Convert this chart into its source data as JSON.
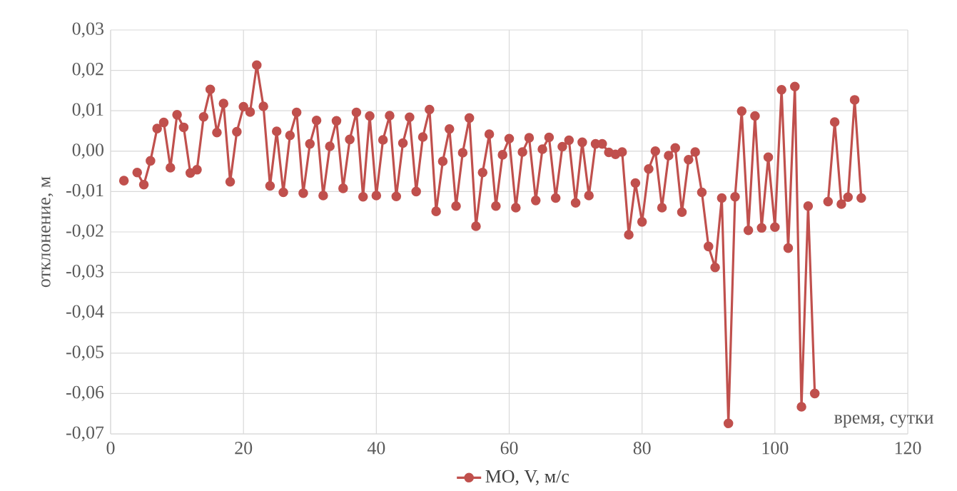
{
  "chart_data": {
    "type": "line",
    "xlabel": "время, сутки",
    "ylabel": "отклонение, м",
    "x": [
      2,
      3,
      4,
      5,
      6,
      7,
      8,
      9,
      10,
      11,
      12,
      13,
      14,
      15,
      16,
      17,
      18,
      19,
      20,
      21,
      22,
      23,
      24,
      25,
      26,
      27,
      28,
      29,
      30,
      31,
      32,
      33,
      34,
      35,
      36,
      37,
      38,
      39,
      40,
      41,
      42,
      43,
      44,
      45,
      46,
      47,
      48,
      49,
      50,
      51,
      52,
      53,
      54,
      55,
      56,
      57,
      58,
      59,
      60,
      61,
      62,
      63,
      64,
      65,
      66,
      67,
      68,
      69,
      70,
      71,
      72,
      73,
      74,
      75,
      76,
      77,
      78,
      79,
      80,
      81,
      82,
      83,
      84,
      85,
      86,
      87,
      88,
      89,
      90,
      91,
      92,
      93,
      94,
      95,
      96,
      97,
      98,
      99,
      100,
      101,
      102,
      103,
      104,
      105,
      106,
      107,
      108,
      109,
      110,
      111,
      112,
      113
    ],
    "series": [
      {
        "name": "MO, V, м/с",
        "color": "#c0504d",
        "values": [
          -0.0073,
          null,
          -0.0053,
          -0.0083,
          -0.0024,
          0.0056,
          0.0071,
          -0.0041,
          0.009,
          0.0059,
          -0.0054,
          -0.0046,
          0.0085,
          0.0153,
          0.0046,
          0.0118,
          -0.0076,
          0.0048,
          0.011,
          0.0097,
          0.0213,
          0.0111,
          -0.0086,
          0.0049,
          -0.0102,
          0.0039,
          0.0096,
          -0.0104,
          0.0018,
          0.0076,
          -0.011,
          0.0012,
          0.0075,
          -0.0092,
          0.0029,
          0.0096,
          -0.0113,
          0.0087,
          -0.011,
          0.0028,
          0.0088,
          -0.0112,
          0.002,
          0.0084,
          -0.01,
          0.0035,
          0.0103,
          -0.0149,
          -0.0025,
          0.0055,
          -0.0136,
          -0.0004,
          0.0082,
          -0.0186,
          -0.0053,
          0.0042,
          -0.0136,
          -0.0009,
          0.0031,
          -0.014,
          -0.0002,
          0.0033,
          -0.0122,
          0.0005,
          0.0034,
          -0.0116,
          0.0011,
          0.0027,
          -0.0128,
          0.0022,
          -0.011,
          0.0018,
          0.0018,
          -0.0003,
          -0.0008,
          -0.0002,
          -0.0207,
          -0.0079,
          -0.0175,
          -0.0044,
          0.0,
          -0.014,
          -0.0011,
          0.0008,
          -0.0151,
          -0.0021,
          -0.0002,
          -0.0102,
          -0.0236,
          -0.0288,
          -0.0116,
          -0.0674,
          -0.0113,
          0.0099,
          -0.0196,
          0.0087,
          -0.019,
          -0.0015,
          -0.0188,
          0.0152,
          -0.024,
          0.016,
          -0.0633,
          -0.0136,
          -0.06,
          null,
          -0.0125,
          0.0072,
          -0.0131,
          -0.0114,
          0.0127,
          -0.0116
        ]
      }
    ],
    "xlim": [
      0,
      120
    ],
    "xticks": [
      0,
      20,
      40,
      60,
      80,
      100,
      120
    ],
    "ylim": [
      -0.07,
      0.03
    ],
    "yticks": [
      {
        "value": -0.07,
        "label": "-0,07"
      },
      {
        "value": -0.06,
        "label": "-0,06"
      },
      {
        "value": -0.05,
        "label": "-0,05"
      },
      {
        "value": -0.04,
        "label": "-0,04"
      },
      {
        "value": -0.03,
        "label": "-0,03"
      },
      {
        "value": -0.02,
        "label": "-0,02"
      },
      {
        "value": -0.01,
        "label": "-0,01"
      },
      {
        "value": 0,
        "label": "0,00"
      },
      {
        "value": 0.01,
        "label": "0,01"
      },
      {
        "value": 0.02,
        "label": "0,02"
      },
      {
        "value": 0.03,
        "label": "0,03"
      }
    ],
    "grid": true,
    "legend": "bottom",
    "marker": "circle",
    "line_style": "solid"
  }
}
